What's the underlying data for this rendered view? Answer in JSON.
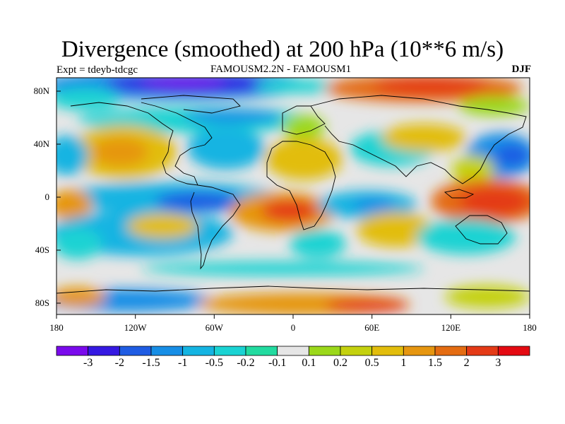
{
  "title": "Divergence (smoothed) at 200 hPa (10**6 m/s)",
  "subtitle_left": "Expt = tdeyb-tdcgc",
  "subtitle_center": "FAMOUSM2.2N - FAMOUSM1",
  "subtitle_right": "DJF",
  "lat_ticks": [
    "80N",
    "40N",
    "0",
    "40S",
    "80S"
  ],
  "lon_ticks": [
    "180",
    "120W",
    "60W",
    "0",
    "60E",
    "120E",
    "180"
  ],
  "colorbar": {
    "colors": [
      "#7a0aec",
      "#3519e2",
      "#1f5ce3",
      "#178ee6",
      "#14b4e2",
      "#1ad3d3",
      "#22dba0",
      "#e6e6e6",
      "#9bd81a",
      "#c4d10e",
      "#e2bd0c",
      "#e69610",
      "#e46c12",
      "#e43a16",
      "#e40a12"
    ],
    "labels": [
      "-3",
      "-2",
      "-1.5",
      "-1",
      "-0.5",
      "-0.2",
      "-0.1",
      "0.1",
      "0.2",
      "0.5",
      "1",
      "1.5",
      "2",
      "3"
    ]
  }
}
